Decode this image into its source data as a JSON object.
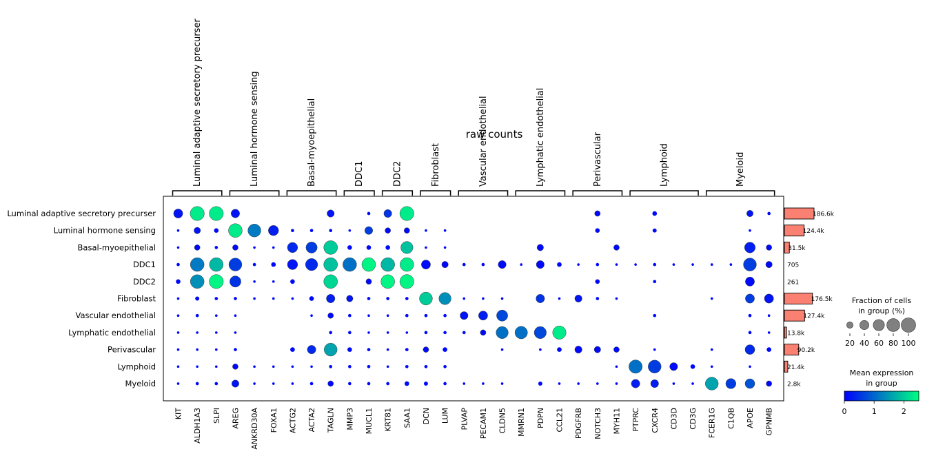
{
  "chart_data": {
    "type": "dotplot",
    "title": "raw counts",
    "genes": [
      "KIT",
      "ALDH1A3",
      "SLPI",
      "AREG",
      "ANKRD30A",
      "FOXA1",
      "ACTG2",
      "ACTA2",
      "TAGLN",
      "MMP3",
      "MUCL1",
      "KRT81",
      "SAA1",
      "DCN",
      "LUM",
      "PLVAP",
      "PECAM1",
      "CLDN5",
      "MMRN1",
      "PDPN",
      "CCL21",
      "PDGFRB",
      "NOTCH3",
      "MYH11",
      "PTPRC",
      "CXCR4",
      "CD3D",
      "CD3G",
      "FCER1G",
      "C1QB",
      "APOE",
      "GPNMB"
    ],
    "groups": [
      "Luminal adaptive secretory precurser",
      "Luminal hormone sensing",
      "Basal-myoepithelial",
      "DDC1",
      "DDC2",
      "Fibroblast",
      "Vascular endothelial",
      "Lymphatic endothelial",
      "Perivascular",
      "Lymphoid",
      "Myeloid"
    ],
    "gene_groups": [
      {
        "label": "Luminal adaptive secretory precurser",
        "start": 0,
        "end": 2
      },
      {
        "label": "Luminal hormone sensing",
        "start": 3,
        "end": 5
      },
      {
        "label": "Basal-myoepithelial",
        "start": 6,
        "end": 8
      },
      {
        "label": "DDC1",
        "start": 9,
        "end": 10
      },
      {
        "label": "DDC2",
        "start": 11,
        "end": 12
      },
      {
        "label": "Fibroblast",
        "start": 13,
        "end": 14
      },
      {
        "label": "Vascular endothelial",
        "start": 15,
        "end": 17
      },
      {
        "label": "Lymphatic endothelial",
        "start": 18,
        "end": 20
      },
      {
        "label": "Perivascular",
        "start": 21,
        "end": 23
      },
      {
        "label": "Lymphoid",
        "start": 24,
        "end": 27
      },
      {
        "label": "Myeloid",
        "start": 28,
        "end": 31
      }
    ],
    "fraction": [
      [
        40,
        95,
        95,
        35,
        0,
        0,
        0,
        0,
        25,
        0,
        5,
        30,
        95,
        0,
        0,
        0,
        0,
        0,
        0,
        0,
        0,
        0,
        15,
        0,
        0,
        10,
        0,
        0,
        0,
        0,
        20,
        5
      ],
      [
        3,
        20,
        10,
        90,
        80,
        50,
        5,
        5,
        5,
        3,
        30,
        15,
        15,
        3,
        3,
        0,
        0,
        0,
        0,
        0,
        0,
        0,
        10,
        0,
        0,
        8,
        0,
        0,
        0,
        0,
        3,
        0
      ],
      [
        3,
        15,
        5,
        15,
        3,
        3,
        50,
        60,
        90,
        10,
        10,
        10,
        70,
        3,
        3,
        0,
        0,
        0,
        0,
        20,
        0,
        0,
        0,
        15,
        0,
        0,
        0,
        0,
        0,
        0,
        55,
        15
      ],
      [
        5,
        90,
        90,
        80,
        5,
        10,
        50,
        70,
        90,
        90,
        90,
        90,
        90,
        40,
        20,
        5,
        5,
        30,
        3,
        30,
        10,
        3,
        5,
        3,
        3,
        5,
        3,
        3,
        3,
        3,
        80,
        20
      ],
      [
        10,
        90,
        95,
        60,
        3,
        3,
        10,
        0,
        90,
        0,
        15,
        90,
        95,
        0,
        0,
        0,
        0,
        0,
        0,
        0,
        0,
        0,
        10,
        0,
        0,
        5,
        0,
        0,
        0,
        0,
        40,
        0
      ],
      [
        3,
        8,
        5,
        5,
        3,
        3,
        3,
        10,
        35,
        20,
        5,
        5,
        5,
        80,
        70,
        3,
        3,
        3,
        0,
        35,
        3,
        25,
        5,
        3,
        0,
        0,
        0,
        0,
        3,
        0,
        40,
        40
      ],
      [
        3,
        5,
        3,
        3,
        0,
        0,
        0,
        3,
        15,
        5,
        3,
        3,
        5,
        5,
        5,
        30,
        40,
        60,
        0,
        0,
        0,
        0,
        0,
        0,
        0,
        5,
        0,
        0,
        0,
        0,
        5,
        3
      ],
      [
        3,
        3,
        3,
        3,
        0,
        0,
        0,
        0,
        5,
        5,
        3,
        3,
        3,
        5,
        5,
        5,
        15,
        70,
        75,
        70,
        85,
        0,
        0,
        0,
        0,
        0,
        0,
        0,
        0,
        0,
        5,
        3
      ],
      [
        3,
        3,
        3,
        5,
        0,
        0,
        10,
        35,
        80,
        10,
        5,
        3,
        5,
        15,
        10,
        0,
        0,
        3,
        0,
        3,
        10,
        25,
        20,
        15,
        0,
        3,
        0,
        0,
        3,
        0,
        45,
        10
      ],
      [
        3,
        3,
        3,
        15,
        3,
        3,
        3,
        3,
        5,
        5,
        5,
        3,
        5,
        5,
        5,
        0,
        0,
        0,
        0,
        0,
        0,
        0,
        0,
        3,
        85,
        80,
        30,
        10,
        3,
        0,
        3,
        0
      ],
      [
        3,
        5,
        5,
        25,
        3,
        3,
        3,
        5,
        15,
        5,
        5,
        5,
        10,
        8,
        5,
        3,
        3,
        3,
        0,
        8,
        3,
        3,
        3,
        3,
        35,
        30,
        3,
        3,
        80,
        50,
        45,
        15
      ]
    ],
    "mean": [
      [
        0.2,
        2.3,
        2.3,
        0.2,
        0,
        0,
        0,
        0,
        0.2,
        0,
        0.1,
        0.5,
        2.3,
        0,
        0,
        0,
        0,
        0,
        0,
        0,
        0,
        0,
        0.1,
        0,
        0,
        0.1,
        0,
        0,
        0,
        0,
        0.2,
        0.1
      ],
      [
        0.1,
        0.2,
        0.1,
        2.3,
        1.2,
        0.3,
        0.1,
        0.1,
        0.1,
        0.1,
        0.6,
        0.1,
        0.1,
        0.1,
        0.1,
        0,
        0,
        0,
        0,
        0,
        0,
        0,
        0.1,
        0,
        0,
        0.1,
        0,
        0,
        0,
        0,
        0.1,
        0
      ],
      [
        0.1,
        0.1,
        0.1,
        0.1,
        0.1,
        0.1,
        0.4,
        0.6,
        2.0,
        0.1,
        0.1,
        0.1,
        1.9,
        0.1,
        0.1,
        0,
        0,
        0,
        0,
        0.1,
        0,
        0,
        0,
        0.1,
        0,
        0,
        0,
        0,
        0,
        0,
        0.3,
        0.1
      ],
      [
        0.1,
        1.2,
        1.8,
        0.6,
        0.1,
        0.1,
        0.2,
        0.4,
        1.9,
        1.1,
        2.4,
        1.8,
        2.3,
        0.1,
        0.1,
        0.1,
        0.1,
        0.1,
        0.1,
        0.1,
        0.1,
        0.1,
        0.1,
        0.1,
        0.1,
        0.1,
        0.1,
        0.1,
        0.1,
        0.1,
        0.6,
        0.1
      ],
      [
        0.1,
        1.4,
        2.4,
        0.5,
        0.1,
        0.1,
        0.1,
        0,
        2.1,
        0,
        0.1,
        2.4,
        2.4,
        0,
        0,
        0,
        0,
        0,
        0,
        0,
        0,
        0,
        0.1,
        0,
        0,
        0.1,
        0,
        0,
        0,
        0,
        0.1,
        0
      ],
      [
        0.1,
        0.1,
        0.1,
        0.1,
        0.1,
        0.1,
        0.1,
        0.1,
        0.3,
        0.2,
        0.1,
        0.1,
        0.1,
        2.0,
        1.4,
        0.1,
        0.1,
        0.1,
        0,
        0.5,
        0.1,
        0.2,
        0.1,
        0.1,
        0,
        0,
        0,
        0,
        0.1,
        0,
        0.6,
        0.2
      ],
      [
        0.1,
        0.1,
        0.1,
        0.1,
        0,
        0,
        0,
        0.1,
        0.1,
        0.1,
        0.1,
        0.1,
        0.1,
        0.1,
        0.1,
        0.2,
        0.3,
        0.7,
        0,
        0,
        0,
        0,
        0,
        0,
        0,
        0.1,
        0,
        0,
        0,
        0,
        0.1,
        0.1
      ],
      [
        0.1,
        0.1,
        0.1,
        0.1,
        0,
        0,
        0,
        0,
        0.1,
        0.1,
        0.1,
        0.1,
        0.1,
        0.1,
        0.1,
        0.1,
        0.1,
        1.1,
        1.1,
        0.7,
        2.3,
        0,
        0,
        0,
        0,
        0,
        0,
        0,
        0,
        0,
        0.1,
        0.1
      ],
      [
        0.1,
        0.1,
        0.1,
        0.1,
        0,
        0,
        0.1,
        0.4,
        1.6,
        0.1,
        0.1,
        0.1,
        0.1,
        0.1,
        0.1,
        0,
        0,
        0.1,
        0,
        0.1,
        0.1,
        0.1,
        0.1,
        0.1,
        0,
        0.1,
        0,
        0,
        0.1,
        0,
        0.4,
        0.1
      ],
      [
        0.1,
        0.1,
        0.1,
        0.1,
        0.1,
        0.1,
        0.1,
        0.1,
        0.1,
        0.1,
        0.1,
        0.1,
        0.1,
        0.1,
        0.1,
        0,
        0,
        0,
        0,
        0,
        0,
        0,
        0,
        0.1,
        1.1,
        0.6,
        0.1,
        0.1,
        0.1,
        0,
        0.1,
        0
      ],
      [
        0.1,
        0.1,
        0.1,
        0.2,
        0.1,
        0.1,
        0.1,
        0.1,
        0.1,
        0.1,
        0.1,
        0.1,
        0.1,
        0.1,
        0.1,
        0.1,
        0.1,
        0.1,
        0,
        0.1,
        0.1,
        0.1,
        0.1,
        0.1,
        0.3,
        0.3,
        0.1,
        0.1,
        1.6,
        0.6,
        0.8,
        0.1
      ]
    ],
    "totals": [
      186.6,
      124.4,
      31.5,
      0.705,
      0.261,
      176.5,
      127.4,
      13.8,
      90.2,
      21.4,
      2.8
    ],
    "total_labels": [
      "186.6k",
      "124.4k",
      "31.5k",
      "705",
      "261",
      "176.5k",
      "127.4k",
      "13.8k",
      "90.2k",
      "21.4k",
      "2.8k"
    ],
    "size_legend": {
      "title": "Fraction of cells\nin group (%)",
      "values": [
        20,
        40,
        60,
        80,
        100
      ]
    },
    "color_legend": {
      "title": "Mean expression\nin group",
      "min": 0,
      "max": 2.5,
      "ticks": [
        0,
        1,
        2
      ],
      "colors": [
        "#0000ff",
        "#00ff80"
      ]
    },
    "bar_color": "#fa8072"
  }
}
